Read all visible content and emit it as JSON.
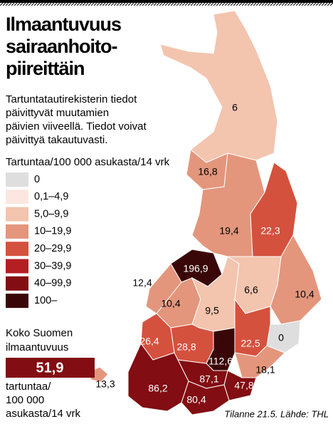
{
  "header": {
    "title_lines": [
      "Ilmaantuvuus",
      "sairaanhoito-",
      "piireittäin"
    ],
    "description_lines": [
      "Tartuntatautirekisterin tiedot",
      "päivittyvät muutamien",
      "päivien viiveellä. Tiedot voivat",
      "päivittyä takautuvasti."
    ]
  },
  "legend": {
    "heading": "Tartuntaa/100 000 asukasta/14 vrk",
    "items": [
      {
        "label": "0",
        "color": "#dedede"
      },
      {
        "label": "0,1–4,9",
        "color": "#fbe7df"
      },
      {
        "label": "5,0–9,9",
        "color": "#f3c4ae"
      },
      {
        "label": "10–19,9",
        "color": "#e3967c"
      },
      {
        "label": "20–29,9",
        "color": "#d4513e"
      },
      {
        "label": "30–39,9",
        "color": "#b41f24"
      },
      {
        "label": "40–99,9",
        "color": "#820d12"
      },
      {
        "label": "100–",
        "color": "#3a0708"
      }
    ]
  },
  "regions": [
    {
      "label": "6",
      "class": 2
    },
    {
      "label": "16,8",
      "class": 3
    },
    {
      "label": "19,4",
      "class": 3
    },
    {
      "label": "22,3",
      "class": 4
    },
    {
      "label": "196,9",
      "class": 7
    },
    {
      "label": "12,4",
      "class": 3
    },
    {
      "label": "10,4",
      "class": 3
    },
    {
      "label": "9,5",
      "class": 2
    },
    {
      "label": "6,6",
      "class": 2
    },
    {
      "label": "10,4",
      "class": 3
    },
    {
      "label": "0",
      "class": 0
    },
    {
      "label": "22,5",
      "class": 4
    },
    {
      "label": "26,4",
      "class": 4
    },
    {
      "label": "28,8",
      "class": 4
    },
    {
      "label": "112,6",
      "class": 7
    },
    {
      "label": "18,1",
      "class": 3
    },
    {
      "label": "47,8",
      "class": 6
    },
    {
      "label": "87,1",
      "class": 6
    },
    {
      "label": "86,2",
      "class": 6
    },
    {
      "label": "80,4",
      "class": 6
    },
    {
      "label": "13,3",
      "class": 3
    }
  ],
  "national": {
    "caption_lines": [
      "Koko Suomen",
      "ilmaantuvuus"
    ],
    "value": "51,9",
    "unit_lines": [
      "tartuntaa/",
      "100 000",
      "asukasta/14 vrk"
    ]
  },
  "footer": "Tilanne 21.5. Lähde: THL"
}
